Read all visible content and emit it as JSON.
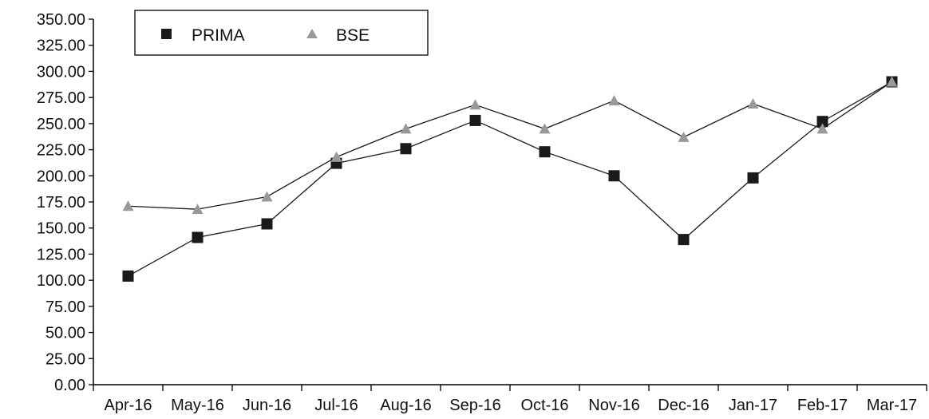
{
  "chart_data": {
    "type": "line",
    "categories": [
      "Apr-16",
      "May-16",
      "Jun-16",
      "Jul-16",
      "Aug-16",
      "Sep-16",
      "Oct-16",
      "Nov-16",
      "Dec-16",
      "Jan-17",
      "Feb-17",
      "Mar-17"
    ],
    "series": [
      {
        "name": "PRIMA",
        "marker": "square",
        "color": "#1a1a1a",
        "values": [
          104,
          141,
          154,
          212,
          226,
          253,
          223,
          200,
          139,
          198,
          252,
          290
        ]
      },
      {
        "name": "BSE",
        "marker": "triangle",
        "color": "#999999",
        "values": [
          171,
          168,
          180,
          218,
          245,
          268,
          245,
          272,
          237,
          269,
          245,
          290
        ]
      }
    ],
    "title": "",
    "xlabel": "",
    "ylabel": "",
    "ylim": [
      0,
      350
    ],
    "y_step": 25,
    "y_tick_labels": [
      "0.00",
      "25.00",
      "50.00",
      "75.00",
      "100.00",
      "125.00",
      "150.00",
      "175.00",
      "200.00",
      "225.00",
      "250.00",
      "275.00",
      "300.00",
      "325.00",
      "350.00"
    ],
    "grid": false,
    "legend_position": "top-left"
  }
}
